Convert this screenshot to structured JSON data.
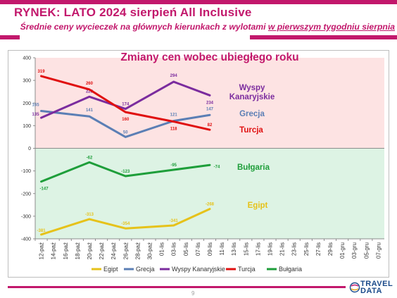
{
  "header": {
    "title": "RYNEK: LATO 2024 sierpień All Inclusive",
    "subtitle_before": "Średnie ceny wycieczek na głównych kierunkach z wylotami ",
    "subtitle_underlined": "w pierwszym tygodniu sierpnia"
  },
  "footer": {
    "page_number": "9",
    "logo_line1": "TRAVEL",
    "logo_line2": "DATA"
  },
  "colors": {
    "brand": "#c2186c",
    "Egipt": "#e6c21a",
    "Grecja": "#5b7fb5",
    "Wyspy Kanaryjskie": "#7b2c9e",
    "Turcja": "#e01010",
    "Bułgaria": "#1e9e3a",
    "positive_band": "#fde3e3",
    "negative_band": "#ddf3e4"
  },
  "chart_data": {
    "type": "line",
    "title": "Zmiany cen wobec ubiegłego roku",
    "xlabel": "",
    "ylabel": "",
    "ylim": [
      -400,
      400
    ],
    "y_ticks": [
      -400,
      -300,
      -200,
      -100,
      0,
      100,
      200,
      300,
      400
    ],
    "grid": "off",
    "legend": "bottom",
    "categories": [
      "12-paź",
      "14-paź",
      "16-paź",
      "18-paź",
      "20-paź",
      "22-paź",
      "24-paź",
      "26-paź",
      "28-paź",
      "30-paź",
      "01-lis",
      "03-lis",
      "05-lis",
      "07-lis",
      "09-lis",
      "11-lis",
      "13-lis",
      "15-lis",
      "17-lis",
      "19-lis",
      "21-lis",
      "23-lis",
      "25-lis",
      "27-lis",
      "29-lis",
      "01-gru",
      "03-gru",
      "05-gru",
      "07-gru"
    ],
    "series": [
      {
        "name": "Egipt",
        "x": [
          "12-paź",
          "20-paź",
          "26-paź",
          "03-lis",
          "09-lis"
        ],
        "values": [
          -381,
          -313,
          -354,
          -341,
          -268
        ],
        "labels": [
          "-381",
          "-313",
          "-354",
          "-341",
          "-268"
        ]
      },
      {
        "name": "Grecja",
        "x": [
          "12-paź",
          "20-paź",
          "26-paź",
          "03-lis",
          "09-lis"
        ],
        "values": [
          165,
          141,
          50,
          121,
          147
        ],
        "labels": [
          "165",
          "141",
          "50",
          "121",
          "147"
        ]
      },
      {
        "name": "Wyspy Kanaryjskie",
        "x": [
          "12-paź",
          "20-paź",
          "26-paź",
          "03-lis",
          "09-lis"
        ],
        "values": [
          135,
          228,
          174,
          294,
          234
        ],
        "labels": [
          "135",
          "228",
          "174",
          "294",
          "234"
        ]
      },
      {
        "name": "Turcja",
        "x": [
          "12-paź",
          "20-paź",
          "26-paź",
          "03-lis",
          "09-lis"
        ],
        "values": [
          319,
          260,
          160,
          118,
          82
        ],
        "labels": [
          "319",
          "260",
          "160",
          "118",
          "82"
        ]
      },
      {
        "name": "Bułgaria",
        "x": [
          "12-paź",
          "20-paź",
          "26-paź",
          "03-lis",
          "09-lis"
        ],
        "values": [
          -147,
          -62,
          -123,
          -95,
          -74
        ],
        "labels": [
          "-147",
          "-62",
          "-123",
          "-95",
          "-74"
        ]
      }
    ],
    "series_annotations": [
      {
        "series": "Wyspy Kanaryjskie",
        "lines": [
          "Wyspy",
          "Kanaryjskie"
        ]
      },
      {
        "series": "Grecja",
        "lines": [
          "Grecja"
        ]
      },
      {
        "series": "Turcja",
        "lines": [
          "Turcja"
        ]
      },
      {
        "series": "Bułgaria",
        "lines": [
          "Bułgaria"
        ]
      },
      {
        "series": "Egipt",
        "lines": [
          "Egipt"
        ]
      }
    ]
  }
}
